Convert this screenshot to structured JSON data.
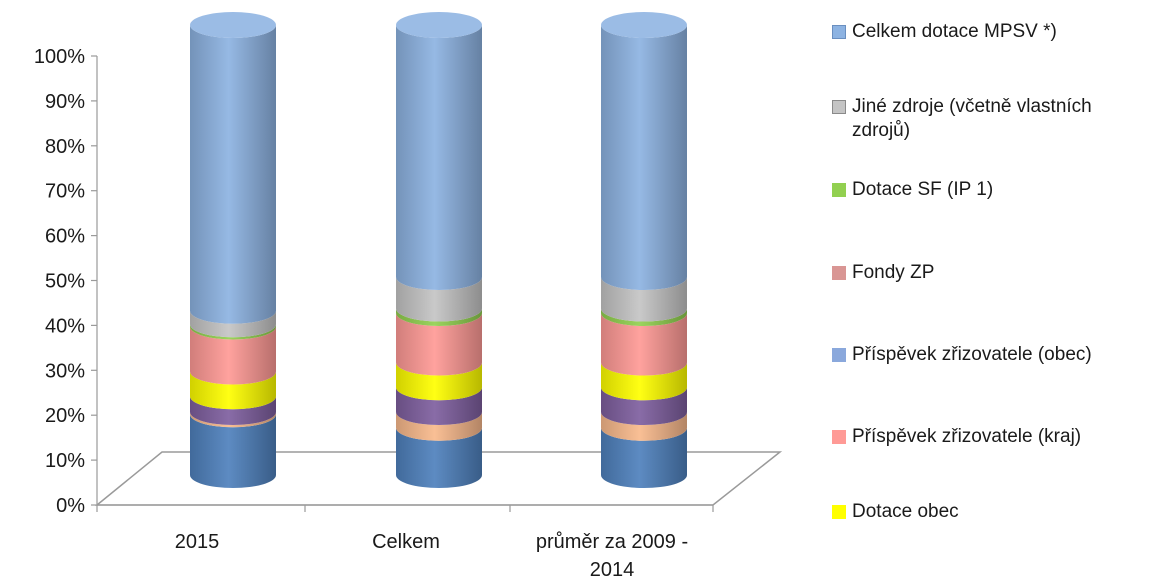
{
  "chart_data": {
    "type": "bar",
    "stacked": "percent",
    "style": "3d-cylinder",
    "categories": [
      "2015",
      "Celkem",
      "průměr za 2009 - 2014"
    ],
    "y_ticks": [
      "0%",
      "10%",
      "20%",
      "30%",
      "40%",
      "50%",
      "60%",
      "70%",
      "80%",
      "90%",
      "100%"
    ],
    "ylim": [
      0,
      100
    ],
    "series": [
      {
        "name": "",
        "color": "#4f81bd",
        "values": [
          13.5,
          10.5,
          10.5
        ]
      },
      {
        "name": "",
        "color": "#f9b98c",
        "values": [
          0.5,
          3.5,
          3.5
        ]
      },
      {
        "name": "",
        "color": "#7f5f9f",
        "values": [
          3.5,
          5.5,
          5.5
        ]
      },
      {
        "name": "Dotace obec",
        "color": "#ffff00",
        "values": [
          5.5,
          5.5,
          5.5
        ]
      },
      {
        "name": "Příspěvek zřizovatele (kraj)",
        "color": "#ff9a96",
        "values": [
          10.0,
          11.0,
          11.0
        ]
      },
      {
        "name": "Příspěvek zřizovatele (obec)",
        "color": "#8aa8dc",
        "values": [
          0.0,
          0.0,
          0.0
        ]
      },
      {
        "name": "Fondy ZP",
        "color": "#d99694",
        "values": [
          0.0,
          0.0,
          0.0
        ]
      },
      {
        "name": "Dotace SF (IP 1)",
        "color": "#92d050",
        "values": [
          0.5,
          1.0,
          1.0
        ]
      },
      {
        "name": "Jiné zdroje (včetně vlastních zdrojů)",
        "color": "#c4c4c4",
        "values": [
          3.0,
          7.0,
          7.0
        ]
      },
      {
        "name": "Celkem dotace MPSV *)",
        "color": "#8db3e2",
        "values": [
          63.5,
          56.0,
          56.0
        ]
      }
    ],
    "x_tick_labels": [
      "2015",
      "Celkem",
      "průměr za 2009 -",
      "2014"
    ],
    "legend_position": "right"
  },
  "legend": {
    "items": [
      {
        "label": "Celkem dotace MPSV *)",
        "color": "#8db3e2",
        "border": "#6a8fc0"
      },
      {
        "label": "Jiné zdroje (včetně vlastních zdrojů)",
        "color": "#c4c4c4",
        "border": "#8a8a8a"
      },
      {
        "label": "Dotace SF (IP 1)",
        "color": "#92d050",
        "border": "#92d050"
      },
      {
        "label": "Fondy ZP",
        "color": "#d99694",
        "border": "#d99694"
      },
      {
        "label": "Příspěvek zřizovatele (obec)",
        "color": "#8aa8dc",
        "border": "#8aa8dc"
      },
      {
        "label": "Příspěvek zřizovatele (kraj)",
        "color": "#ff9a96",
        "border": "#ff9a96"
      },
      {
        "label": "Dotace obec",
        "color": "#ffff00",
        "border": "#ffff00"
      }
    ]
  }
}
